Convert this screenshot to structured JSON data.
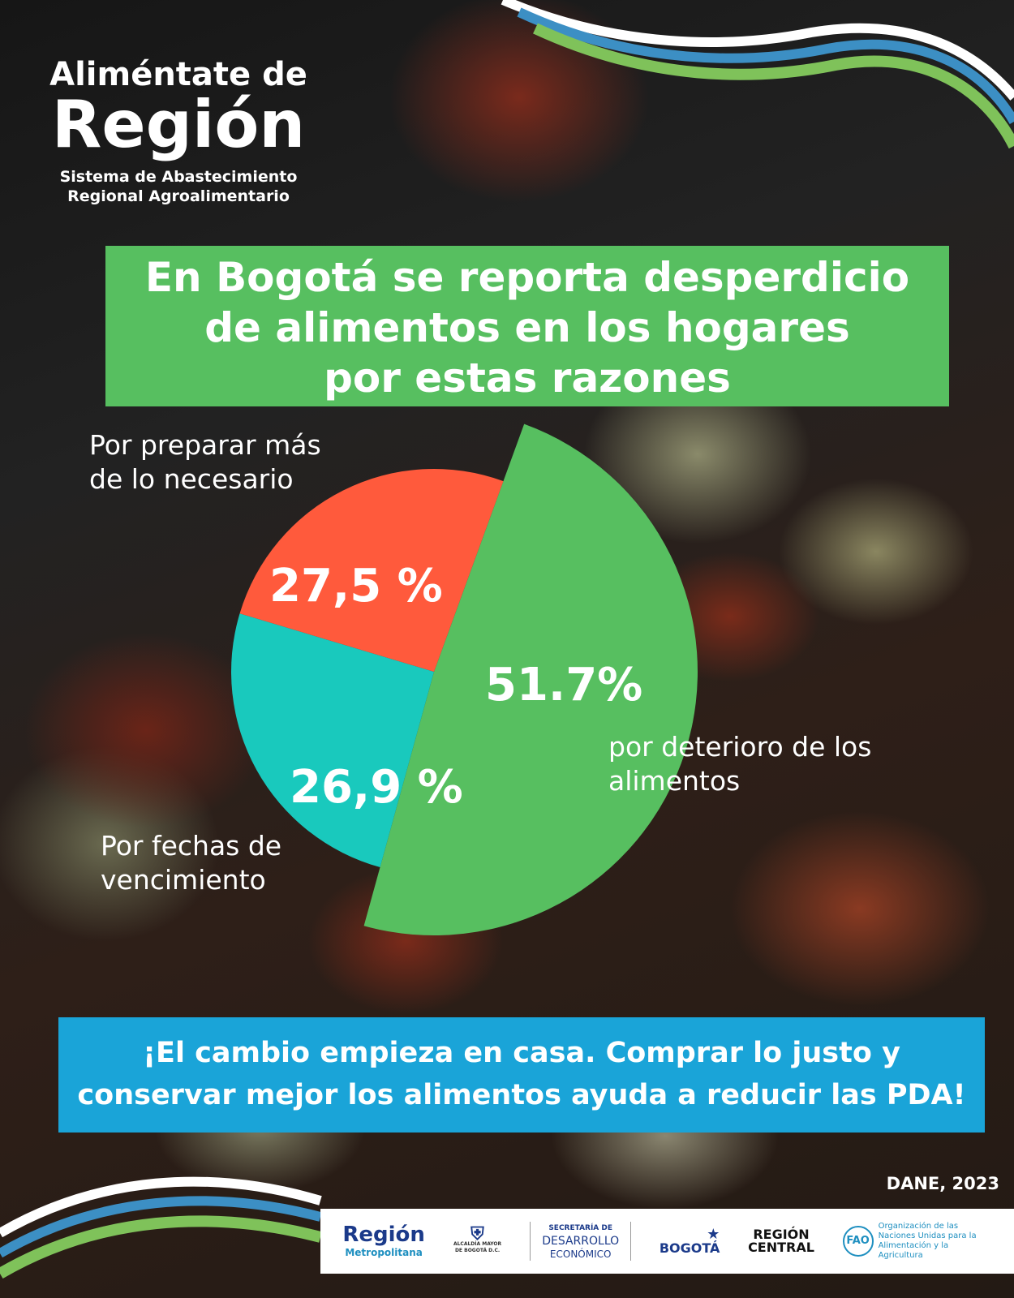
{
  "logo": {
    "line1": "Aliméntate de",
    "line2": "Región",
    "subtitle1": "Sistema de Abastecimiento",
    "subtitle2": "Regional Agroalimentario"
  },
  "title": {
    "line1": "En Bogotá se reporta desperdicio",
    "line2": "de alimentos en los hogares",
    "line3": "por estas razones"
  },
  "chart_data": {
    "type": "pie",
    "title": "En Bogotá se reporta desperdicio de alimentos en los hogares por estas razones",
    "slices": [
      {
        "label": "por deterioro de los alimentos",
        "label_line1": "por deterioro de los",
        "label_line2": "alimentos",
        "value": 51.7,
        "display": "51.7%",
        "color": "#57bf60",
        "exploded": true
      },
      {
        "label": "Por fechas de vencimiento",
        "label_line1": "Por fechas de",
        "label_line2": "vencimiento",
        "value": 26.9,
        "display": "26,9 %",
        "color": "#19c9bd"
      },
      {
        "label": "Por preparar más de lo necesario",
        "label_line1": "Por preparar más",
        "label_line2": "de lo necesario",
        "value": 27.5,
        "display": "27,5 %",
        "color": "#ff5a3c"
      }
    ]
  },
  "cta": {
    "line1": "¡El cambio empieza en casa. Comprar lo justo y",
    "line2": "conservar mejor los alimentos ayuda a reducir las PDA!"
  },
  "source": "DANE, 2023",
  "footer": {
    "region_metro": "Región",
    "region_metro_sub": "Metropolitana",
    "alcaldia": "ALCALDÍA MAYOR DE BOGOTÁ D.C.",
    "secretaria1": "SECRETARÍA DE",
    "secretaria2": "DESARROLLO",
    "secretaria3": "ECONÓMICO",
    "bogota": "BOGOTÁ",
    "region_central1": "REGIÓN",
    "region_central2": "CENTRAL",
    "fao": "Organización de las Naciones Unidas para la Alimentación y la Agricultura"
  }
}
